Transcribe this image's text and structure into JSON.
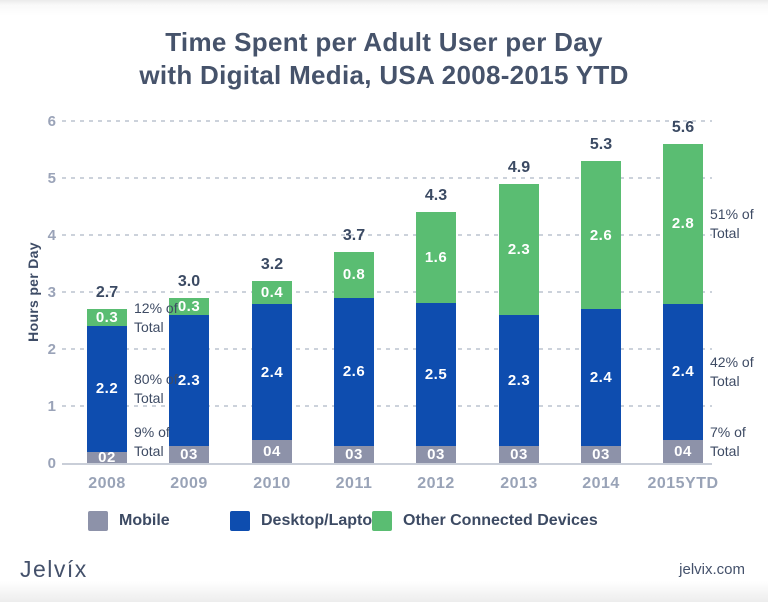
{
  "title": {
    "line1": "Time Spent per Adult User per Day",
    "line2": "with Digital Media, USA 2008-2015 YTD"
  },
  "chart_data": {
    "type": "bar",
    "stacked": true,
    "title": "Time Spent per Adult User per Day with Digital Media, USA 2008-2015 YTD",
    "ylabel": "Hours per Day",
    "ylim": [
      0,
      6
    ],
    "yticks": [
      0,
      1,
      2,
      3,
      4,
      5,
      6
    ],
    "grid": "dashed-horizontal",
    "legend_position": "bottom",
    "categories": [
      "2008",
      "2009",
      "2010",
      "2011",
      "2012",
      "2013",
      "2014",
      "2015YTD"
    ],
    "series": [
      {
        "name": "Mobile",
        "color": "#8d92a9",
        "values": [
          0.2,
          0.3,
          0.4,
          0.3,
          0.3,
          0.3,
          0.3,
          0.4
        ],
        "labels": [
          "02",
          "03",
          "04",
          "03",
          "03",
          "03",
          "03",
          "04"
        ]
      },
      {
        "name": "Desktop/Laptop",
        "color": "#0e4daf",
        "values": [
          2.2,
          2.3,
          2.4,
          2.6,
          2.5,
          2.3,
          2.4,
          2.4
        ],
        "labels": [
          "2.2",
          "2.3",
          "2.4",
          "2.6",
          "2.5",
          "2.3",
          "2.4",
          "2.4"
        ]
      },
      {
        "name": "Other Connected Devices",
        "color": "#5abd72",
        "values": [
          0.3,
          0.3,
          0.4,
          0.8,
          1.6,
          2.3,
          2.6,
          2.8
        ],
        "labels": [
          "0.3",
          "0.3",
          "0.4",
          "0.8",
          "1.6",
          "2.3",
          "2.6",
          "2.8"
        ]
      }
    ],
    "totals": [
      "2.7",
      "3.0",
      "3.2",
      "3.7",
      "4.3",
      "4.9",
      "5.3",
      "5.6"
    ],
    "annotations": [
      {
        "text": "12% of Total",
        "bar": 0,
        "series": 2
      },
      {
        "text": "80% of Total",
        "bar": 0,
        "series": 1
      },
      {
        "text": "9% of Total",
        "bar": 0,
        "series": 0
      },
      {
        "text": "51% of Total",
        "bar": 7,
        "series": 2
      },
      {
        "text": "42% of Total",
        "bar": 7,
        "series": 1
      },
      {
        "text": "7% of Total",
        "bar": 7,
        "series": 0
      }
    ]
  },
  "footer": {
    "logo": "Jelvíx",
    "website": "jelvix.com"
  }
}
